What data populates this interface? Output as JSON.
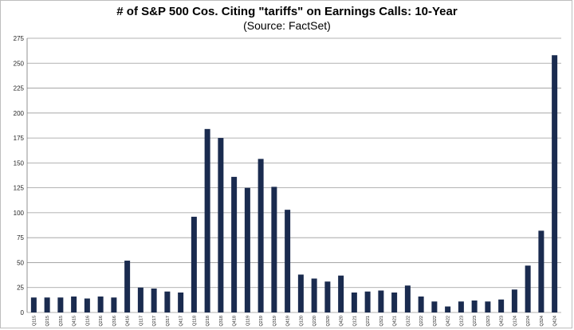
{
  "chart_data": {
    "type": "bar",
    "title": "# of S&P 500 Cos. Citing \"tariffs\" on Earnings Calls: 10-Year",
    "subtitle": "(Source: FactSet)",
    "xlabel": "",
    "ylabel": "",
    "ylim": [
      0,
      275
    ],
    "yticks": [
      0,
      25,
      50,
      75,
      100,
      125,
      150,
      175,
      200,
      225,
      250,
      275
    ],
    "grid": "horizontal",
    "legend": "none",
    "bar_color": "#1a2b4f",
    "gridline_color": "#9a9a9a",
    "categories": [
      "Q115",
      "Q215",
      "Q315",
      "Q415",
      "Q116",
      "Q216",
      "Q316",
      "Q416",
      "Q117",
      "Q217",
      "Q317",
      "Q417",
      "Q118",
      "Q218",
      "Q318",
      "Q418",
      "Q119",
      "Q219",
      "Q319",
      "Q419",
      "Q120",
      "Q220",
      "Q320",
      "Q420",
      "Q121",
      "Q221",
      "Q321",
      "Q421",
      "Q122",
      "Q222",
      "Q322",
      "Q422",
      "Q123",
      "Q223",
      "Q323",
      "Q423",
      "Q124",
      "Q224",
      "Q324",
      "Q424"
    ],
    "values": [
      15,
      15,
      15,
      16,
      14,
      16,
      15,
      52,
      25,
      24,
      21,
      20,
      96,
      184,
      175,
      136,
      125,
      154,
      126,
      103,
      38,
      34,
      31,
      37,
      20,
      21,
      22,
      20,
      27,
      16,
      11,
      6,
      11,
      12,
      11,
      13,
      23,
      47,
      82,
      258
    ]
  }
}
